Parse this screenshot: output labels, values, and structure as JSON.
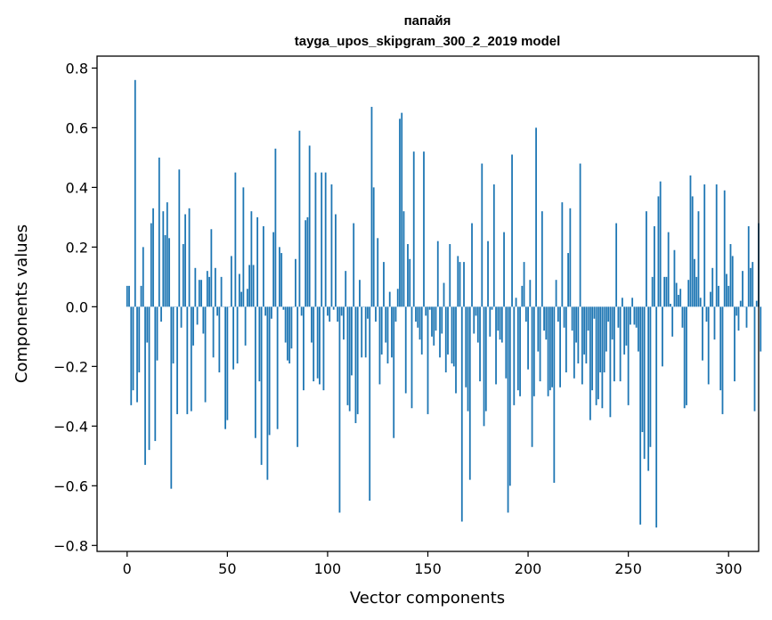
{
  "chart_data": {
    "type": "bar",
    "title_lines": [
      "папайя",
      "tayga_upos_skipgram_300_2_2019 model"
    ],
    "xlabel": "Vector components",
    "ylabel": "Components values",
    "xlim": [
      -15,
      315
    ],
    "ylim": [
      -0.82,
      0.84
    ],
    "xticks": [
      0,
      50,
      100,
      150,
      200,
      250,
      300
    ],
    "xtick_labels": [
      "0",
      "50",
      "100",
      "150",
      "200",
      "250",
      "300"
    ],
    "yticks": [
      -0.8,
      -0.6,
      -0.4,
      -0.2,
      0.0,
      0.2,
      0.4,
      0.6,
      0.8
    ],
    "ytick_labels": [
      "−0.8",
      "−0.6",
      "−0.4",
      "−0.2",
      "0.0",
      "0.2",
      "0.4",
      "0.6",
      "0.8"
    ],
    "bar_color": "#1f77b4",
    "grid": false,
    "values": [
      0.07,
      0.07,
      -0.33,
      -0.28,
      0.76,
      -0.32,
      -0.22,
      0.07,
      0.2,
      -0.53,
      -0.12,
      -0.48,
      0.28,
      0.33,
      -0.45,
      -0.18,
      0.5,
      -0.05,
      0.32,
      0.24,
      0.35,
      0.23,
      -0.61,
      -0.19,
      0.0,
      -0.36,
      0.46,
      -0.07,
      0.21,
      0.31,
      -0.36,
      0.33,
      -0.35,
      -0.13,
      0.13,
      -0.06,
      0.09,
      0.09,
      -0.09,
      -0.32,
      0.12,
      0.1,
      0.26,
      -0.17,
      0.13,
      -0.03,
      -0.22,
      0.1,
      0.0,
      -0.41,
      -0.38,
      0.0,
      0.17,
      -0.21,
      0.45,
      -0.19,
      0.11,
      0.05,
      0.4,
      -0.13,
      0.06,
      0.14,
      0.32,
      0.14,
      -0.44,
      0.3,
      -0.25,
      -0.53,
      0.27,
      -0.03,
      -0.58,
      -0.43,
      -0.04,
      0.25,
      0.53,
      -0.41,
      0.2,
      0.18,
      -0.01,
      -0.12,
      -0.18,
      -0.19,
      -0.14,
      0.0,
      0.16,
      -0.47,
      0.59,
      -0.03,
      -0.28,
      0.29,
      0.3,
      0.54,
      -0.12,
      -0.25,
      0.45,
      -0.24,
      -0.26,
      0.45,
      -0.28,
      0.45,
      -0.03,
      -0.05,
      0.41,
      -0.01,
      0.31,
      -0.05,
      -0.69,
      -0.03,
      -0.11,
      0.12,
      -0.33,
      -0.35,
      -0.23,
      0.28,
      -0.39,
      -0.36,
      0.09,
      -0.17,
      0.0,
      -0.17,
      -0.04,
      -0.65,
      0.67,
      0.4,
      -0.05,
      0.23,
      -0.26,
      -0.16,
      0.15,
      -0.12,
      -0.19,
      0.05,
      -0.17,
      -0.44,
      -0.05,
      0.06,
      0.63,
      0.65,
      0.32,
      -0.29,
      0.21,
      0.16,
      -0.34,
      0.52,
      -0.05,
      -0.07,
      -0.11,
      -0.16,
      0.52,
      -0.03,
      -0.36,
      -0.01,
      -0.1,
      -0.13,
      -0.08,
      0.22,
      -0.17,
      -0.09,
      0.08,
      -0.22,
      -0.16,
      0.21,
      -0.19,
      -0.2,
      -0.29,
      0.17,
      0.15,
      -0.72,
      0.15,
      -0.27,
      -0.35,
      -0.58,
      0.28,
      -0.09,
      -0.03,
      -0.12,
      -0.25,
      0.48,
      -0.4,
      -0.35,
      0.22,
      -0.1,
      -0.01,
      0.41,
      -0.26,
      -0.08,
      -0.11,
      -0.12,
      0.25,
      -0.24,
      -0.69,
      -0.6,
      0.51,
      -0.33,
      0.03,
      -0.28,
      -0.3,
      0.07,
      0.15,
      -0.05,
      -0.21,
      0.09,
      -0.47,
      -0.3,
      0.6,
      -0.15,
      -0.25,
      0.32,
      -0.08,
      -0.11,
      -0.3,
      -0.28,
      -0.27,
      -0.59,
      0.09,
      -0.05,
      -0.27,
      0.35,
      -0.07,
      -0.22,
      0.18,
      0.33,
      -0.08,
      -0.24,
      -0.12,
      -0.19,
      0.48,
      -0.26,
      -0.16,
      -0.19,
      -0.08,
      -0.38,
      -0.28,
      -0.04,
      -0.33,
      -0.31,
      -0.22,
      -0.34,
      -0.22,
      -0.15,
      -0.05,
      -0.37,
      -0.11,
      -0.25,
      0.28,
      -0.07,
      -0.25,
      0.03,
      -0.16,
      -0.13,
      -0.33,
      -0.06,
      0.03,
      -0.06,
      -0.07,
      -0.15,
      -0.73,
      -0.42,
      -0.51,
      0.32,
      -0.55,
      -0.47,
      0.1,
      0.27,
      -0.74,
      0.37,
      0.42,
      -0.2,
      0.1,
      0.1,
      0.25,
      0.01,
      -0.1,
      0.19,
      0.08,
      0.04,
      0.06,
      -0.07,
      -0.34,
      -0.33,
      0.09,
      0.44,
      0.37,
      0.16,
      0.1,
      0.32,
      0.03,
      -0.18,
      0.41,
      -0.05,
      -0.26,
      0.05,
      0.13,
      -0.11,
      0.41,
      0.07,
      -0.28,
      -0.36,
      0.39,
      0.11,
      0.07,
      0.21,
      0.17,
      -0.25,
      -0.03,
      -0.08,
      0.02,
      0.12,
      0.0,
      -0.07,
      0.27,
      0.13,
      0.15,
      -0.35,
      0.02,
      0.28,
      -0.15
    ]
  }
}
